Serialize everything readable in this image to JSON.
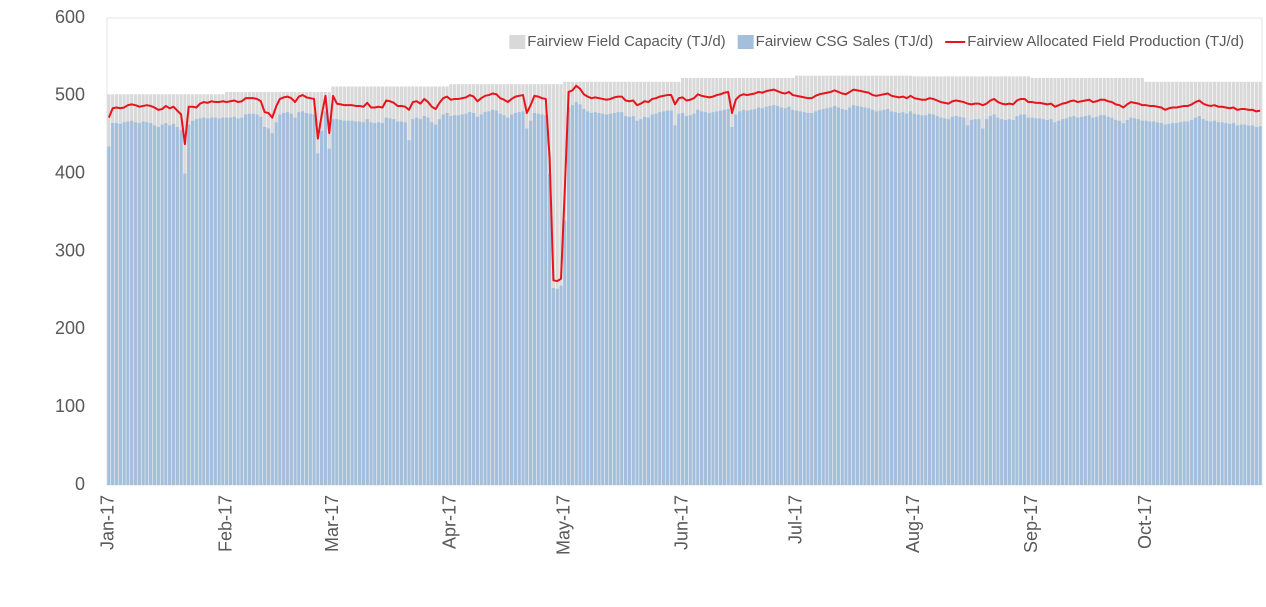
{
  "chart_data": {
    "type": "bar-line",
    "categories": [
      "Jan-17",
      null,
      null,
      null,
      null,
      null,
      null,
      null,
      null,
      null,
      null,
      null,
      null,
      null,
      null,
      null,
      null,
      null,
      null,
      null,
      null,
      null,
      null,
      null,
      null,
      null,
      null,
      null,
      null,
      null,
      null,
      "Feb-17",
      null,
      null,
      null,
      null,
      null,
      null,
      null,
      null,
      null,
      null,
      null,
      null,
      null,
      null,
      null,
      null,
      null,
      null,
      null,
      null,
      null,
      null,
      null,
      null,
      null,
      null,
      null,
      "Mar-17",
      null,
      null,
      null,
      null,
      null,
      null,
      null,
      null,
      null,
      null,
      null,
      null,
      null,
      null,
      null,
      null,
      null,
      null,
      null,
      null,
      null,
      null,
      null,
      null,
      null,
      null,
      null,
      null,
      null,
      null,
      "Apr-17",
      null,
      null,
      null,
      null,
      null,
      null,
      null,
      null,
      null,
      null,
      null,
      null,
      null,
      null,
      null,
      null,
      null,
      null,
      null,
      null,
      null,
      null,
      null,
      null,
      null,
      null,
      null,
      null,
      null,
      "May-17",
      null,
      null,
      null,
      null,
      null,
      null,
      null,
      null,
      null,
      null,
      null,
      null,
      null,
      null,
      null,
      null,
      null,
      null,
      null,
      null,
      null,
      null,
      null,
      null,
      null,
      null,
      null,
      null,
      null,
      null,
      "Jun-17",
      null,
      null,
      null,
      null,
      null,
      null,
      null,
      null,
      null,
      null,
      null,
      null,
      null,
      null,
      null,
      null,
      null,
      null,
      null,
      null,
      null,
      null,
      null,
      null,
      null,
      null,
      null,
      null,
      null,
      "Jul-17",
      null,
      null,
      null,
      null,
      null,
      null,
      null,
      null,
      null,
      null,
      null,
      null,
      null,
      null,
      null,
      null,
      null,
      null,
      null,
      null,
      null,
      null,
      null,
      null,
      null,
      null,
      null,
      null,
      null,
      null,
      "Aug-17",
      null,
      null,
      null,
      null,
      null,
      null,
      null,
      null,
      null,
      null,
      null,
      null,
      null,
      null,
      null,
      null,
      null,
      null,
      null,
      null,
      null,
      null,
      null,
      null,
      null,
      null,
      null,
      null,
      null,
      null,
      "Sep-17",
      null,
      null,
      null,
      null,
      null,
      null,
      null,
      null,
      null,
      null,
      null,
      null,
      null,
      null,
      null,
      null,
      null,
      null,
      null,
      null,
      null,
      null,
      null,
      null,
      null,
      null,
      null,
      null,
      null,
      "Oct-17",
      null,
      null,
      null,
      null,
      null,
      null,
      null,
      null,
      null,
      null,
      null,
      null,
      null,
      null,
      null,
      null,
      null,
      null,
      null,
      null,
      null,
      null,
      null,
      null,
      null,
      null,
      null,
      null,
      null,
      null
    ],
    "series": [
      {
        "name": "Fairview Field Capacity (TJ/d)",
        "color": "#d9d9d9",
        "kind": "bar",
        "values": [
          502,
          502,
          502,
          502,
          502,
          502,
          502,
          502,
          502,
          502,
          502,
          502,
          502,
          502,
          502,
          502,
          502,
          502,
          502,
          502,
          502,
          502,
          502,
          502,
          502,
          502,
          502,
          502,
          502,
          502,
          502,
          505,
          505,
          505,
          505,
          505,
          505,
          505,
          505,
          505,
          505,
          505,
          505,
          505,
          505,
          505,
          505,
          505,
          505,
          505,
          505,
          505,
          505,
          505,
          505,
          505,
          505,
          505,
          505,
          512,
          512,
          512,
          512,
          512,
          512,
          512,
          512,
          512,
          512,
          512,
          512,
          512,
          512,
          512,
          512,
          512,
          512,
          512,
          512,
          512,
          512,
          512,
          512,
          512,
          512,
          512,
          512,
          512,
          512,
          512,
          515,
          515,
          515,
          515,
          515,
          515,
          515,
          515,
          515,
          515,
          515,
          515,
          515,
          515,
          515,
          515,
          515,
          515,
          515,
          515,
          515,
          515,
          515,
          515,
          515,
          515,
          515,
          515,
          515,
          515,
          518,
          518,
          518,
          518,
          518,
          518,
          518,
          518,
          518,
          518,
          518,
          518,
          518,
          518,
          518,
          518,
          518,
          518,
          518,
          518,
          518,
          518,
          518,
          518,
          518,
          518,
          518,
          518,
          518,
          518,
          518,
          523,
          523,
          523,
          523,
          523,
          523,
          523,
          523,
          523,
          523,
          523,
          523,
          523,
          523,
          523,
          523,
          523,
          523,
          523,
          523,
          523,
          523,
          523,
          523,
          523,
          523,
          523,
          523,
          523,
          523,
          526,
          526,
          526,
          526,
          526,
          526,
          526,
          526,
          526,
          526,
          526,
          526,
          526,
          526,
          526,
          526,
          526,
          526,
          526,
          526,
          526,
          526,
          526,
          526,
          526,
          526,
          526,
          526,
          526,
          526,
          526,
          525,
          525,
          525,
          525,
          525,
          525,
          525,
          525,
          525,
          525,
          525,
          525,
          525,
          525,
          525,
          525,
          525,
          525,
          525,
          525,
          525,
          525,
          525,
          525,
          525,
          525,
          525,
          525,
          525,
          525,
          525,
          523,
          523,
          523,
          523,
          523,
          523,
          523,
          523,
          523,
          523,
          523,
          523,
          523,
          523,
          523,
          523,
          523,
          523,
          523,
          523,
          523,
          523,
          523,
          523,
          523,
          523,
          523,
          523,
          523,
          523,
          518,
          518,
          518,
          518,
          518,
          518,
          518,
          518,
          518,
          518,
          518,
          518,
          518,
          518,
          518,
          518,
          518,
          518,
          518,
          518,
          518,
          518,
          518,
          518,
          518,
          518,
          518,
          518,
          518,
          518,
          518
        ]
      },
      {
        "name": "Fairview CSG Sales (TJ/d)",
        "color": "#a3bfdb",
        "kind": "bar",
        "values": [
          435,
          465,
          465,
          464,
          466,
          467,
          468,
          466,
          465,
          467,
          466,
          465,
          462,
          460,
          463,
          465,
          462,
          464,
          460,
          456,
          400,
          463,
          468,
          470,
          471,
          472,
          471,
          472,
          472,
          471,
          472,
          472,
          472,
          473,
          471,
          472,
          476,
          477,
          477,
          476,
          473,
          460,
          458,
          452,
          466,
          476,
          478,
          479,
          477,
          472,
          479,
          480,
          478,
          477,
          476,
          426,
          455,
          480,
          432,
          470,
          470,
          469,
          468,
          468,
          468,
          467,
          467,
          466,
          470,
          466,
          465,
          466,
          465,
          472,
          471,
          470,
          467,
          467,
          466,
          443,
          470,
          472,
          470,
          474,
          472,
          466,
          463,
          470,
          476,
          478,
          474,
          475,
          475,
          476,
          477,
          479,
          478,
          473,
          476,
          479,
          480,
          482,
          481,
          477,
          475,
          472,
          476,
          478,
          479,
          480,
          458,
          468,
          478,
          477,
          476,
          475,
          400,
          253,
          252,
          256,
          340,
          485,
          488,
          492,
          489,
          483,
          480,
          478,
          479,
          478,
          477,
          476,
          477,
          478,
          479,
          479,
          474,
          473,
          474,
          468,
          470,
          473,
          472,
          476,
          477,
          479,
          480,
          481,
          481,
          462,
          477,
          478,
          474,
          475,
          477,
          482,
          480,
          479,
          478,
          479,
          480,
          481,
          482,
          483,
          460,
          476,
          480,
          482,
          481,
          482,
          483,
          485,
          484,
          486,
          487,
          488,
          487,
          485,
          484,
          486,
          482,
          481,
          480,
          479,
          478,
          478,
          480,
          482,
          483,
          484,
          485,
          487,
          485,
          483,
          482,
          485,
          488,
          487,
          486,
          485,
          484,
          482,
          480,
          481,
          482,
          483,
          480,
          479,
          478,
          479,
          477,
          480,
          477,
          476,
          475,
          475,
          477,
          476,
          474,
          472,
          471,
          470,
          473,
          474,
          473,
          472,
          462,
          469,
          470,
          470,
          458,
          470,
          474,
          476,
          472,
          470,
          469,
          470,
          469,
          474,
          476,
          476,
          472,
          472,
          471,
          471,
          470,
          469,
          470,
          466,
          468,
          470,
          471,
          473,
          474,
          472,
          473,
          474,
          475,
          472,
          473,
          475,
          475,
          473,
          472,
          469,
          468,
          465,
          469,
          472,
          471,
          470,
          468,
          468,
          467,
          467,
          466,
          465,
          463,
          464,
          465,
          465,
          466,
          467,
          467,
          469,
          472,
          474,
          470,
          468,
          467,
          468,
          466,
          466,
          465,
          464,
          465,
          462,
          463,
          463,
          462,
          462,
          460,
          461
        ]
      },
      {
        "name": "Fairview Allocated Field Production (TJ/d)",
        "color": "#e8141c",
        "kind": "line",
        "values": [
          472,
          484,
          485,
          484,
          485,
          488,
          489,
          488,
          486,
          487,
          488,
          487,
          485,
          482,
          483,
          487,
          484,
          486,
          481,
          476,
          438,
          486,
          486,
          485,
          490,
          492,
          491,
          493,
          492,
          492,
          493,
          492,
          493,
          494,
          492,
          493,
          497,
          497,
          497,
          496,
          493,
          479,
          478,
          472,
          486,
          496,
          498,
          499,
          497,
          492,
          499,
          501,
          498,
          497,
          496,
          445,
          475,
          500,
          452,
          500,
          490,
          489,
          488,
          488,
          488,
          487,
          487,
          486,
          491,
          485,
          485,
          486,
          485,
          494,
          493,
          491,
          487,
          487,
          486,
          482,
          492,
          493,
          490,
          496,
          492,
          486,
          483,
          491,
          497,
          499,
          495,
          496,
          496,
          497,
          498,
          501,
          499,
          493,
          497,
          500,
          501,
          503,
          502,
          497,
          495,
          492,
          496,
          499,
          500,
          501,
          478,
          488,
          500,
          499,
          497,
          496,
          420,
          263,
          262,
          265,
          380,
          505,
          507,
          513,
          509,
          502,
          499,
          497,
          498,
          497,
          496,
          495,
          496,
          498,
          499,
          499,
          494,
          493,
          494,
          488,
          490,
          493,
          492,
          496,
          497,
          499,
          500,
          501,
          501,
          489,
          497,
          498,
          494,
          495,
          497,
          502,
          500,
          499,
          498,
          499,
          501,
          502,
          504,
          505,
          478,
          495,
          500,
          502,
          501,
          502,
          503,
          505,
          504,
          506,
          507,
          508,
          506,
          504,
          503,
          505,
          501,
          500,
          499,
          498,
          497,
          497,
          500,
          502,
          503,
          504,
          505,
          507,
          505,
          503,
          502,
          505,
          508,
          507,
          506,
          505,
          504,
          501,
          500,
          501,
          502,
          503,
          500,
          499,
          498,
          499,
          497,
          500,
          497,
          496,
          495,
          495,
          497,
          496,
          494,
          492,
          491,
          490,
          493,
          494,
          493,
          492,
          490,
          489,
          490,
          490,
          488,
          490,
          494,
          496,
          492,
          490,
          489,
          490,
          489,
          494,
          496,
          496,
          492,
          492,
          491,
          491,
          490,
          489,
          490,
          486,
          488,
          490,
          491,
          493,
          494,
          492,
          493,
          494,
          495,
          492,
          493,
          495,
          495,
          493,
          492,
          489,
          488,
          485,
          489,
          492,
          491,
          490,
          488,
          488,
          487,
          487,
          486,
          485,
          482,
          484,
          485,
          485,
          486,
          487,
          487,
          489,
          492,
          494,
          490,
          488,
          487,
          488,
          486,
          486,
          485,
          484,
          485,
          482,
          483,
          483,
          482,
          482,
          480,
          481
        ]
      }
    ],
    "ylim": [
      0,
      600
    ],
    "yticks": [
      0,
      100,
      200,
      300,
      400,
      500,
      600
    ],
    "grid": false,
    "legend": "top-right"
  }
}
